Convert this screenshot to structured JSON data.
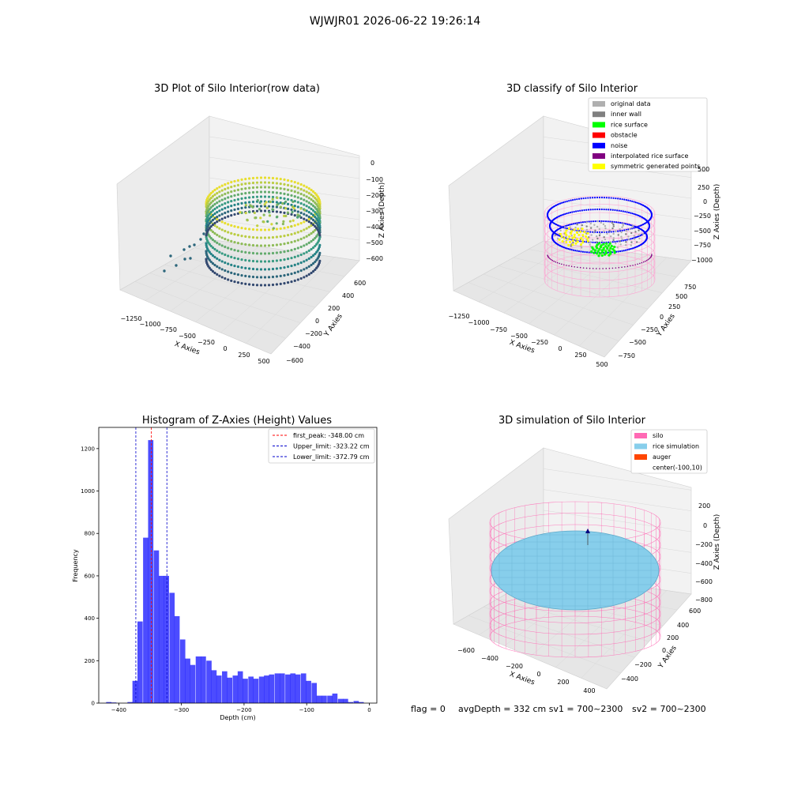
{
  "suptitle": "WJWJR01 2026-06-22 19:26:14",
  "panels": {
    "raw": {
      "title": "3D Plot of Silo Interior(row data)",
      "xlabel": "X Axies",
      "ylabel": "Y Axies",
      "zlabel": "Z Axies (Depth)",
      "xticks": [
        "−1250",
        "−1000",
        "−750",
        "−500",
        "−250",
        "0",
        "250",
        "500"
      ],
      "yticks": [
        "−600",
        "−400",
        "−200",
        "0",
        "200",
        "400",
        "600"
      ],
      "zticks": [
        "0",
        "−100",
        "−200",
        "−300",
        "−400",
        "−500",
        "−600"
      ]
    },
    "classify": {
      "title": "3D classify of Silo Interior",
      "xlabel": "X Axies",
      "ylabel": "Y Axies",
      "zlabel": "Z Axies (Depth)",
      "xticks": [
        "−1250",
        "−1000",
        "−750",
        "−500",
        "−250",
        "0",
        "250",
        "500"
      ],
      "yticks": [
        "−750",
        "−500",
        "−250",
        "0",
        "250",
        "500",
        "750"
      ],
      "zticks": [
        "500",
        "250",
        "0",
        "−250",
        "−500",
        "−750",
        "−1000"
      ],
      "legend": [
        {
          "label": "original data",
          "color": "#b0b0b0"
        },
        {
          "label": "inner wall",
          "color": "#808080"
        },
        {
          "label": "rice surface",
          "color": "#00ff00"
        },
        {
          "label": "obstacle",
          "color": "#ff0000"
        },
        {
          "label": "noise",
          "color": "#0000ff"
        },
        {
          "label": "interpolated rice surface",
          "color": "#800080"
        },
        {
          "label": "symmetric generated points",
          "color": "#ffff00"
        }
      ]
    },
    "histogram": {
      "title": "Histogram of Z-Axies (Height) Values",
      "xlabel": "Depth (cm)",
      "ylabel": "Frequency",
      "legend": [
        {
          "label": "first_peak: -348.00 cm",
          "color": "#ff0000"
        },
        {
          "label": "Upper_limit: -323.22 cm",
          "color": "#0000cc"
        },
        {
          "label": "Lower_limit: -372.79 cm",
          "color": "#0000cc"
        }
      ]
    },
    "simulation": {
      "title": "3D simulation of Silo Interior",
      "xlabel": "X Axies",
      "ylabel": "Y Axies",
      "zlabel": "Z Axies (Depth)",
      "xticks": [
        "−600",
        "−400",
        "−200",
        "0",
        "200",
        "400"
      ],
      "yticks": [
        "−400",
        "−200",
        "0",
        "200",
        "400",
        "600"
      ],
      "zticks": [
        "200",
        "0",
        "−200",
        "−400",
        "−600",
        "−800"
      ],
      "legend": [
        {
          "label": "silo",
          "color": "#ff69b4"
        },
        {
          "label": "rice simulation",
          "color": "#87ceeb"
        },
        {
          "label": "auger",
          "color": "#ff4500"
        },
        {
          "label": "center(-100,10)",
          "color": ""
        }
      ]
    }
  },
  "status": {
    "flag": "flag = 0",
    "avg": "avgDepth = 332 cm  sv1 = 700~2300",
    "sv2": "sv2 = 700~2300"
  },
  "chart_data": [
    {
      "type": "bar",
      "title": "Histogram of Z-Axies (Height) Values",
      "xlabel": "Depth (cm)",
      "ylabel": "Frequency",
      "bin_width": 8.4,
      "x": [
        -416,
        -408,
        -399,
        -391,
        -382,
        -374,
        -366,
        -357,
        -349,
        -340,
        -332,
        -324,
        -315,
        -307,
        -298,
        -290,
        -282,
        -273,
        -265,
        -256,
        -248,
        -240,
        -231,
        -223,
        -214,
        -206,
        -198,
        -189,
        -181,
        -172,
        -164,
        -156,
        -147,
        -139,
        -130,
        -122,
        -114,
        -105,
        -97,
        -88,
        -80,
        -72,
        -63,
        -55,
        -46,
        -38,
        -30,
        -21,
        -13,
        -4
      ],
      "values": [
        5,
        3,
        0,
        0,
        5,
        105,
        385,
        780,
        1240,
        720,
        600,
        600,
        520,
        410,
        300,
        210,
        180,
        220,
        220,
        200,
        155,
        130,
        150,
        120,
        130,
        150,
        115,
        125,
        115,
        125,
        130,
        135,
        140,
        140,
        135,
        140,
        135,
        140,
        105,
        95,
        35,
        35,
        35,
        45,
        20,
        20,
        5,
        10,
        5,
        0
      ],
      "xticks": [
        "−400",
        "−300",
        "−200",
        "−100",
        "0"
      ],
      "yticks": [
        "0",
        "200",
        "400",
        "600",
        "800",
        "1000",
        "1200"
      ],
      "xlim": [
        -432,
        12
      ],
      "ylim": [
        0,
        1300
      ],
      "vlines": [
        {
          "x": -348.0,
          "color": "#ff0000"
        },
        {
          "x": -323.22,
          "color": "#0000cc"
        },
        {
          "x": -372.79,
          "color": "#0000cc"
        }
      ]
    }
  ]
}
